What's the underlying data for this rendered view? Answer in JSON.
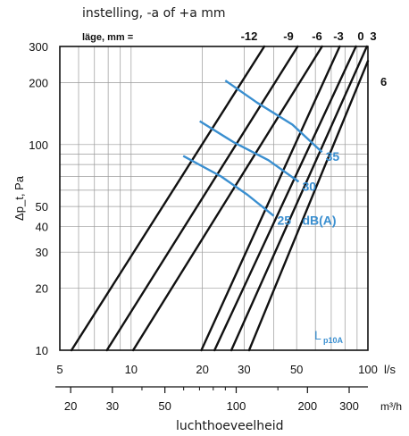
{
  "page_title_top": "instelling, -a of +a mm",
  "page_title_bottom": "luchthoeveelheid",
  "colors": {
    "line": "#111111",
    "grid": "#9a9a9a",
    "noise": "#3a8fd0",
    "text": "#111111"
  },
  "chart_data": {
    "type": "line",
    "x_scale": "log",
    "y_scale": "log",
    "xlim": [
      5,
      100
    ],
    "ylim": [
      10,
      300
    ],
    "grid": true,
    "xlabel": "l/s",
    "ylabel": "Δp_t, Pa",
    "secondary_x_label": "m³/h",
    "secondary_x_ticks": [
      "20",
      "30",
      "50",
      "100",
      "200",
      "300"
    ],
    "secondary_x_values": [
      20,
      30,
      50,
      100,
      200,
      300
    ],
    "x_ticks": [
      "5",
      "10",
      "20",
      "30",
      "50",
      "100"
    ],
    "x_tick_values": [
      5,
      10,
      20,
      30,
      50,
      100
    ],
    "y_ticks": [
      "10",
      "20",
      "30",
      "40",
      "50",
      "100",
      "200",
      "300"
    ],
    "y_tick_values": [
      10,
      20,
      30,
      40,
      50,
      100,
      200,
      300
    ],
    "setting_header": "läge, mm =",
    "series": [
      {
        "name": "-12",
        "points": [
          [
            5.6,
            10
          ],
          [
            36.5,
            300
          ]
        ]
      },
      {
        "name": "-9",
        "points": [
          [
            7.9,
            10
          ],
          [
            50.5,
            300
          ]
        ]
      },
      {
        "name": "-6",
        "points": [
          [
            10.2,
            10
          ],
          [
            64,
            300
          ]
        ]
      },
      {
        "name": "-3",
        "points": [
          [
            19.8,
            10
          ],
          [
            76,
            300
          ]
        ]
      },
      {
        "name": "0",
        "points": [
          [
            22.5,
            10
          ],
          [
            89,
            300
          ]
        ]
      },
      {
        "name": "3",
        "points": [
          [
            26.5,
            10
          ],
          [
            99,
            300
          ]
        ]
      },
      {
        "name": "6",
        "points": [
          [
            31.5,
            10
          ],
          [
            106,
            300
          ]
        ]
      }
    ],
    "top_labels": [
      "-12",
      "-9",
      "-6",
      "-3",
      "0",
      "3"
    ],
    "right_label": "6",
    "noise_curves": [
      {
        "label": "25",
        "points": [
          [
            16.6,
            88
          ],
          [
            24,
            70
          ],
          [
            31,
            57
          ],
          [
            40,
            45
          ]
        ]
      },
      {
        "label": "30",
        "points": [
          [
            19.5,
            130
          ],
          [
            27,
            103
          ],
          [
            38,
            84
          ],
          [
            51,
            66
          ]
        ]
      },
      {
        "label": "35",
        "points": [
          [
            25,
            205
          ],
          [
            34,
            160
          ],
          [
            48,
            125
          ],
          [
            64,
            92
          ]
        ]
      }
    ],
    "noise_unit": "dB(A)",
    "legend_label": "L",
    "legend_subscript": "p10A"
  }
}
